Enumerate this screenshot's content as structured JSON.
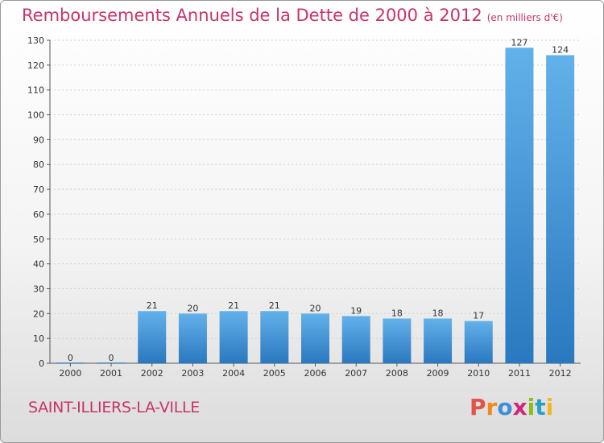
{
  "title": "Remboursements Annuels de la Dette de 2000 à 2012",
  "unit_note": "(en milliers d'€)",
  "town": "SAINT-ILLIERS-LA-VILLE",
  "logo": {
    "text": "Proxiti",
    "colors": [
      "#e0554a",
      "#f08a1c",
      "#3f8fd6",
      "#d2267a",
      "#8bbd1c",
      "#2aa0c8",
      "#f0b81c"
    ]
  },
  "colors": {
    "bar": "#3f95dc",
    "bar_light": "#63b1ea",
    "title": "#c8346a"
  },
  "chart_data": {
    "type": "bar",
    "categories": [
      "2000",
      "2001",
      "2002",
      "2003",
      "2004",
      "2005",
      "2006",
      "2007",
      "2008",
      "2009",
      "2010",
      "2011",
      "2012"
    ],
    "values": [
      0,
      0,
      21,
      20,
      21,
      21,
      20,
      19,
      18,
      18,
      17,
      127,
      124
    ],
    "ylim": [
      0,
      130
    ],
    "yticks": [
      0,
      10,
      20,
      30,
      40,
      50,
      60,
      70,
      80,
      90,
      100,
      110,
      120,
      130
    ],
    "grid": true,
    "xlabel": "",
    "ylabel": ""
  }
}
